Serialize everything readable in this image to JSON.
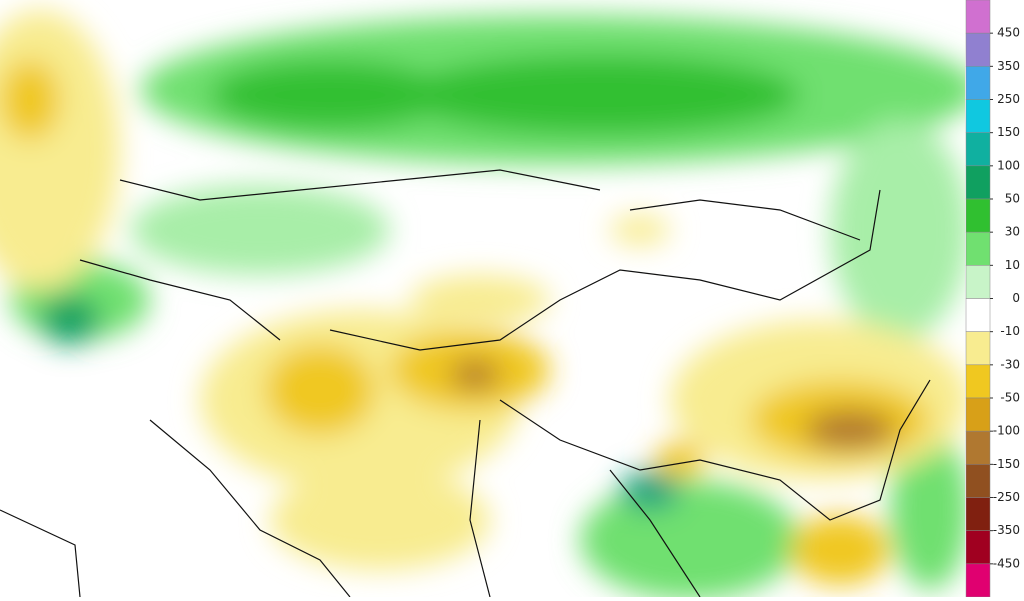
{
  "colorbar": {
    "ticks": [
      450,
      350,
      250,
      150,
      100,
      50,
      30,
      10,
      0,
      -10,
      -30,
      -50,
      -100,
      -150,
      -250,
      -350,
      -450
    ],
    "colors": [
      "#d070d0",
      "#9080d0",
      "#40a8e8",
      "#10c8e0",
      "#10b0a0",
      "#10a060",
      "#30c030",
      "#70e070",
      "#c8f4c8",
      "#ffffff",
      "#f8ec90",
      "#f0c820",
      "#d8a018",
      "#b07830",
      "#905020",
      "#802010",
      "#a00020",
      "#e00070"
    ]
  }
}
